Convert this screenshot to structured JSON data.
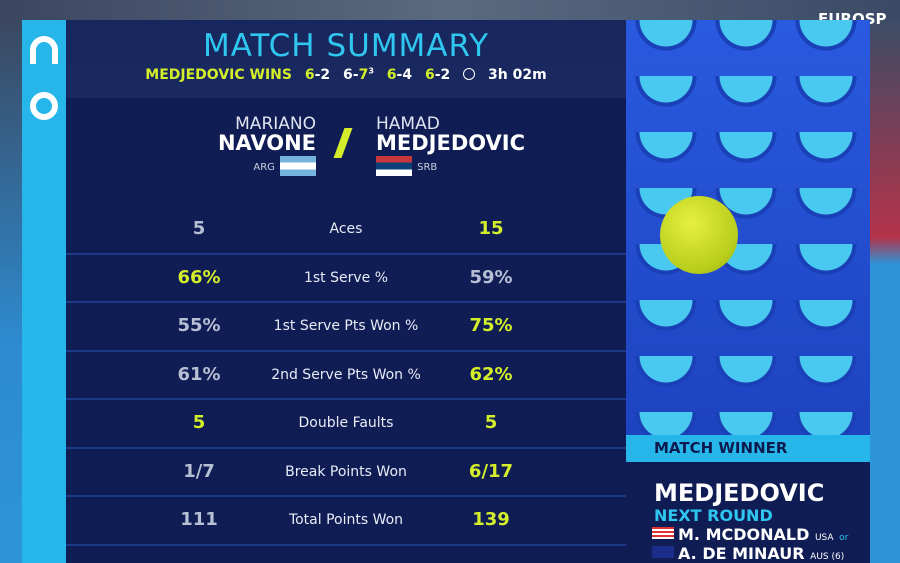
{
  "broadcaster": "EUROSP",
  "header": {
    "title": "MATCH SUMMARY",
    "result": "MEDJEDOVIC WINS",
    "sets": [
      {
        "a": "6",
        "b": "2",
        "winner": "a"
      },
      {
        "a": "6",
        "b": "7",
        "tb": "3",
        "winner": "b"
      },
      {
        "a": "6",
        "b": "4",
        "winner": "a"
      },
      {
        "a": "6",
        "b": "2",
        "winner": "a"
      }
    ],
    "duration": "3h 02m"
  },
  "players": {
    "left": {
      "first": "MARIANO",
      "last": "NAVONE",
      "country": "ARG"
    },
    "right": {
      "first": "HAMAD",
      "last": "MEDJEDOVIC",
      "country": "SRB"
    }
  },
  "stats": [
    {
      "label": "Aces",
      "left": "5",
      "right": "15",
      "hl": "r"
    },
    {
      "label": "1st Serve %",
      "left": "66%",
      "right": "59%",
      "hl": "l"
    },
    {
      "label": "1st Serve Pts Won %",
      "left": "55%",
      "right": "75%",
      "hl": "r"
    },
    {
      "label": "2nd Serve Pts Won %",
      "left": "61%",
      "right": "62%",
      "hl": "r"
    },
    {
      "label": "Double Faults",
      "left": "5",
      "right": "5",
      "hl": "b"
    },
    {
      "label": "Break Points Won",
      "left": "1/7",
      "right": "6/17",
      "hl": "r"
    },
    {
      "label": "Total Points Won",
      "left": "111",
      "right": "139",
      "hl": "r"
    }
  ],
  "winner": {
    "heading": "MATCH WINNER",
    "name": "MEDJEDOVIC",
    "next_label": "NEXT ROUND",
    "opponents": [
      {
        "name": "M. MCDONALD",
        "country": "USA",
        "suffix": "or"
      },
      {
        "name": "A. DE MINAUR",
        "country": "AUS (6)",
        "suffix": ""
      }
    ]
  },
  "colors": {
    "accent": "#2fc6ef",
    "highlight": "#d4ee2a",
    "panel": "#101c54"
  }
}
